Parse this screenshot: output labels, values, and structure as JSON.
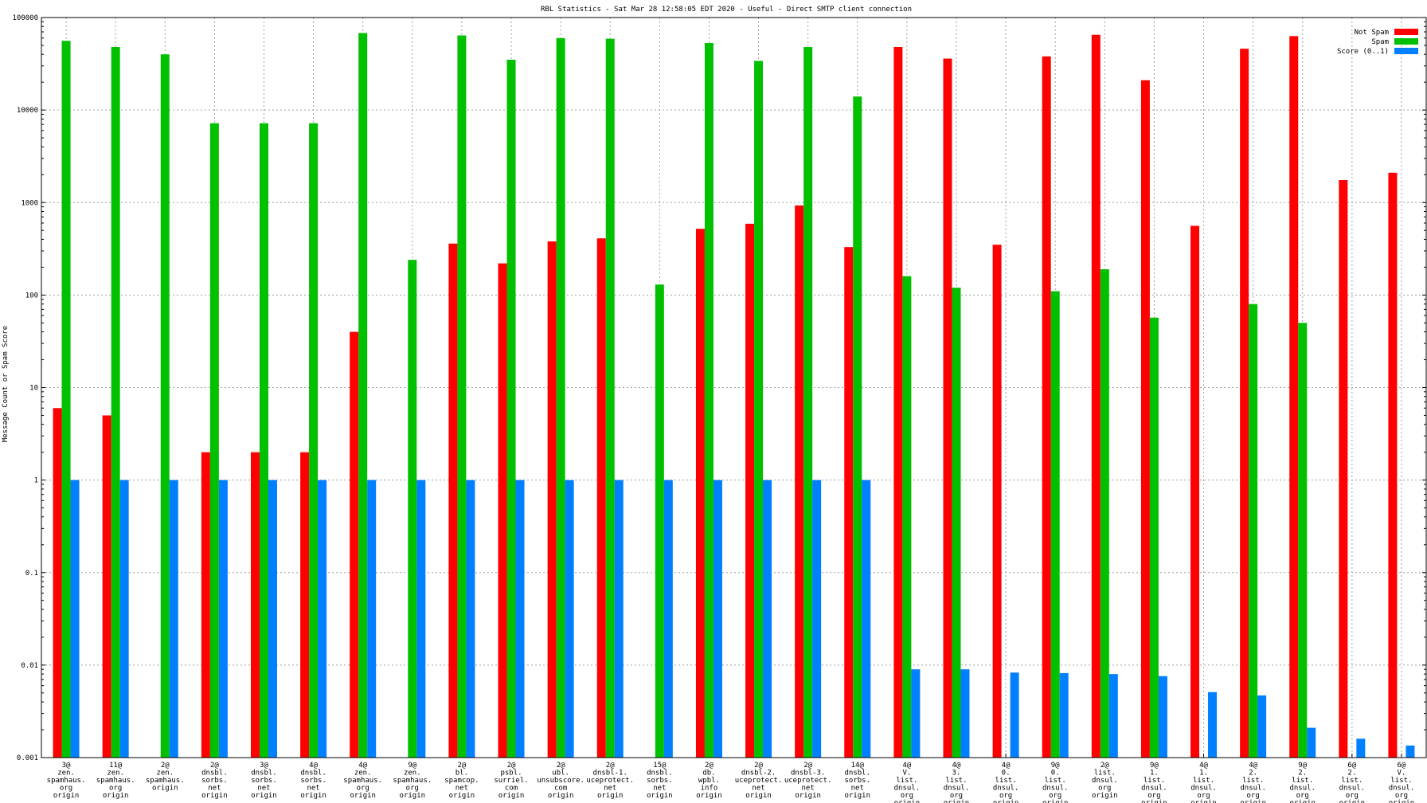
{
  "chart_data": {
    "type": "bar",
    "title": "RBL Statistics - Sat Mar 28 12:58:05 EDT 2020 - Useful - Direct SMTP client connection",
    "ylabel": "Message Count or Spam Score",
    "xlabel": "",
    "yscale": "log",
    "ylim": [
      0.001,
      100000
    ],
    "yticks": [
      "0.001",
      "0.01",
      "0.1",
      "1",
      "10",
      "100",
      "1000",
      "10000",
      "100000"
    ],
    "grid": true,
    "legend_position": "top-right",
    "categories": [
      [
        "3@",
        "zen.",
        "spamhaus.",
        "org",
        "origin"
      ],
      [
        "11@",
        "zen.",
        "spamhaus.",
        "org",
        "origin"
      ],
      [
        "2@",
        "zen.",
        "spamhaus.",
        "origin"
      ],
      [
        "2@",
        "dnsbl.",
        "sorbs.",
        "net",
        "origin"
      ],
      [
        "3@",
        "dnsbl.",
        "sorbs.",
        "net",
        "origin"
      ],
      [
        "4@",
        "dnsbl.",
        "sorbs.",
        "net",
        "origin"
      ],
      [
        "4@",
        "zen.",
        "spamhaus.",
        "org",
        "origin"
      ],
      [
        "9@",
        "zen.",
        "spamhaus.",
        "org",
        "origin"
      ],
      [
        "2@",
        "bl.",
        "spamcop.",
        "net",
        "origin"
      ],
      [
        "2@",
        "psbl.",
        "surriel.",
        "com",
        "origin"
      ],
      [
        "2@",
        "ubl.",
        "unsubscore.",
        "com",
        "origin"
      ],
      [
        "2@",
        "dnsbl-1.",
        "uceprotect.",
        "net",
        "origin"
      ],
      [
        "15@",
        "dnsbl.",
        "sorbs.",
        "net",
        "origin"
      ],
      [
        "2@",
        "db.",
        "wpbl.",
        "info",
        "origin"
      ],
      [
        "2@",
        "dnsbl-2.",
        "uceprotect.",
        "net",
        "origin"
      ],
      [
        "2@",
        "dnsbl-3.",
        "uceprotect.",
        "net",
        "origin"
      ],
      [
        "14@",
        "dnsbl.",
        "sorbs.",
        "net",
        "origin"
      ],
      [
        "4@",
        "V.",
        "list.",
        "dnsul.",
        "org",
        "origin"
      ],
      [
        "4@",
        "3.",
        "list.",
        "dnsul.",
        "org",
        "origin"
      ],
      [
        "4@",
        "0.",
        "list.",
        "dnsul.",
        "org",
        "origin"
      ],
      [
        "9@",
        "0.",
        "list.",
        "dnsul.",
        "org",
        "origin"
      ],
      [
        "2@",
        "list.",
        "dnsul.",
        "org",
        "origin"
      ],
      [
        "9@",
        "1.",
        "list.",
        "dnsul.",
        "org",
        "origin"
      ],
      [
        "4@",
        "1.",
        "list.",
        "dnsul.",
        "org",
        "origin"
      ],
      [
        "4@",
        "2.",
        "list.",
        "dnsul.",
        "org",
        "origin"
      ],
      [
        "9@",
        "2.",
        "list.",
        "dnsul.",
        "org",
        "origin"
      ],
      [
        "6@",
        "2.",
        "list.",
        "dnsul.",
        "org",
        "origin"
      ],
      [
        "6@",
        "V.",
        "list.",
        "dnsul.",
        "org",
        "origin"
      ]
    ],
    "series": [
      {
        "name": "Not Spam",
        "color": "#ff0000",
        "values": [
          6,
          5,
          0,
          2,
          2,
          2,
          40,
          0,
          360,
          220,
          380,
          410,
          0,
          520,
          590,
          930,
          330,
          48000,
          36000,
          350,
          38000,
          65000,
          21000,
          560,
          46000,
          63000,
          1750,
          2100
        ]
      },
      {
        "name": "Spam",
        "color": "#00c000",
        "values": [
          56000,
          48000,
          40000,
          7200,
          7200,
          7200,
          68000,
          240,
          64000,
          35000,
          60000,
          59000,
          130,
          53000,
          34000,
          48000,
          14000,
          160,
          120,
          0,
          110,
          190,
          57,
          0,
          80,
          50,
          0,
          0
        ]
      },
      {
        "name": "Score (0..1)",
        "color": "#0080ff",
        "values": [
          1,
          1,
          1,
          1,
          1,
          1,
          1,
          1,
          1,
          1,
          1,
          1,
          1,
          1,
          1,
          1,
          1,
          0.009,
          0.009,
          0.0083,
          0.0082,
          0.008,
          0.0076,
          0.0051,
          0.0047,
          0.0021,
          0.0016,
          0.00135
        ]
      }
    ]
  }
}
